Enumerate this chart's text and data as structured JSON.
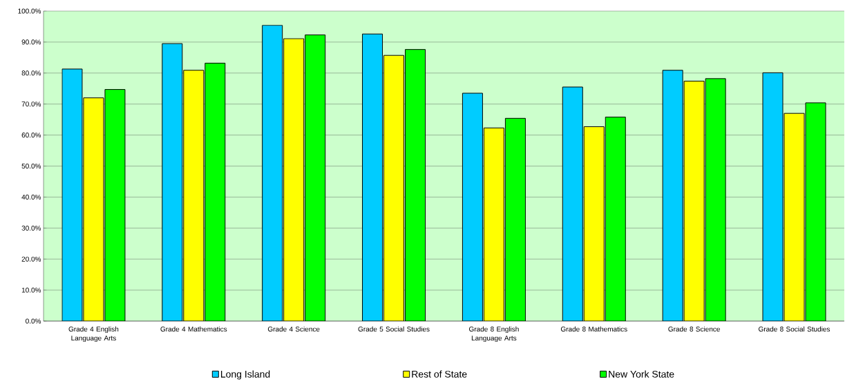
{
  "chart_data": {
    "type": "bar",
    "categories": [
      "Grade 4 English Language Arts",
      "Grade 4 Mathematics",
      "Grade 4 Science",
      "Grade 5 Social Studies",
      "Grade 8 English Language Arts",
      "Grade 8 Mathematics",
      "Grade 8 Science",
      "Grade 8 Social Studies"
    ],
    "series": [
      {
        "name": "Long Island",
        "color": "#00ccff",
        "values": [
          81.3,
          89.5,
          95.4,
          92.6,
          73.5,
          75.5,
          80.9,
          80.1
        ]
      },
      {
        "name": "Rest of State",
        "color": "#ffff00",
        "values": [
          72.0,
          80.9,
          91.1,
          85.7,
          62.3,
          62.7,
          77.4,
          67.0
        ]
      },
      {
        "name": "New  York State",
        "color": "#00ff00",
        "values": [
          74.7,
          83.2,
          92.3,
          87.6,
          65.4,
          65.8,
          78.2,
          70.4
        ]
      }
    ],
    "ylim": [
      0,
      100
    ],
    "yticks": [
      {
        "value": 0,
        "label": "0.0%"
      },
      {
        "value": 10,
        "label": "10.0%"
      },
      {
        "value": 20,
        "label": "20.0%"
      },
      {
        "value": 30,
        "label": "30.0%"
      },
      {
        "value": 40,
        "label": "40.0%"
      },
      {
        "value": 50,
        "label": "50.0%"
      },
      {
        "value": 60,
        "label": "60.0%"
      },
      {
        "value": 70,
        "label": "70.0%"
      },
      {
        "value": 80,
        "label": "80.0%"
      },
      {
        "value": 90,
        "label": "90.0%"
      },
      {
        "value": 100,
        "label": "100.0%"
      }
    ],
    "grid": "y",
    "legend": "bottom"
  }
}
